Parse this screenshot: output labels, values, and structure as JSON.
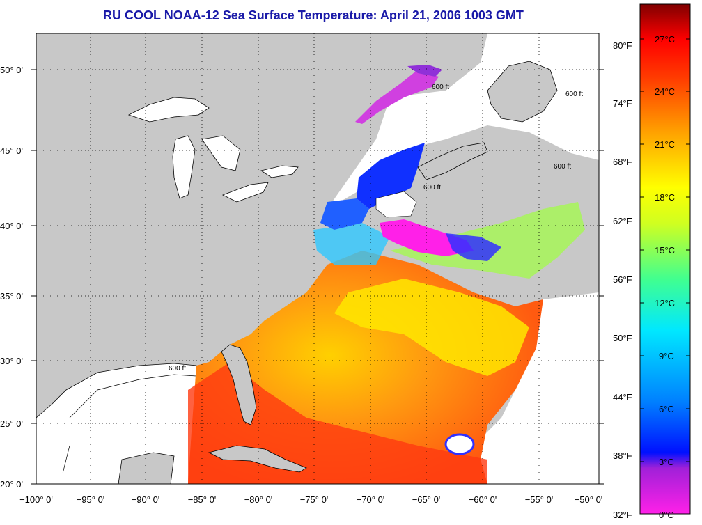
{
  "title": "RU COOL  NOAA-12  Sea Surface Temperature:  April 21, 2006 1003 GMT",
  "map": {
    "lon_range": [
      -100,
      -50
    ],
    "lat_range": [
      20,
      52
    ],
    "lon_ticks": [
      "−100° 0'",
      "−95° 0'",
      "−90° 0'",
      "−85° 0'",
      "−80° 0'",
      "−75° 0'",
      "−70° 0'",
      "−65° 0'",
      "−60° 0'",
      "−55° 0'",
      "−50° 0'"
    ],
    "lat_ticks": [
      "20° 0'",
      "25° 0'",
      "30° 0'",
      "35° 0'",
      "40° 0'",
      "45° 0'",
      "50° 0'"
    ],
    "isobath_label": "600 ft",
    "colors": {
      "land": "#c8c8c8",
      "cloud": "#ffffff",
      "grid": "#000000"
    }
  },
  "colorbar": {
    "min_c": 0,
    "max_c": 28,
    "celsius_labels": [
      "27°C",
      "24°C",
      "21°C",
      "18°C",
      "15°C",
      "12°C",
      "9°C",
      "6°C",
      "3°C",
      "0°C"
    ],
    "fahrenheit_labels": [
      "80°F",
      "74°F",
      "68°F",
      "62°F",
      "56°F",
      "50°F",
      "44°F",
      "38°F",
      "32°F"
    ],
    "colors": [
      "#ff20e8",
      "#8020d0",
      "#0010ff",
      "#0080ff",
      "#00e0ff",
      "#40ffa0",
      "#c0ff20",
      "#ffff00",
      "#ffa000",
      "#ff4000",
      "#ff0000",
      "#c00000",
      "#800000"
    ]
  }
}
